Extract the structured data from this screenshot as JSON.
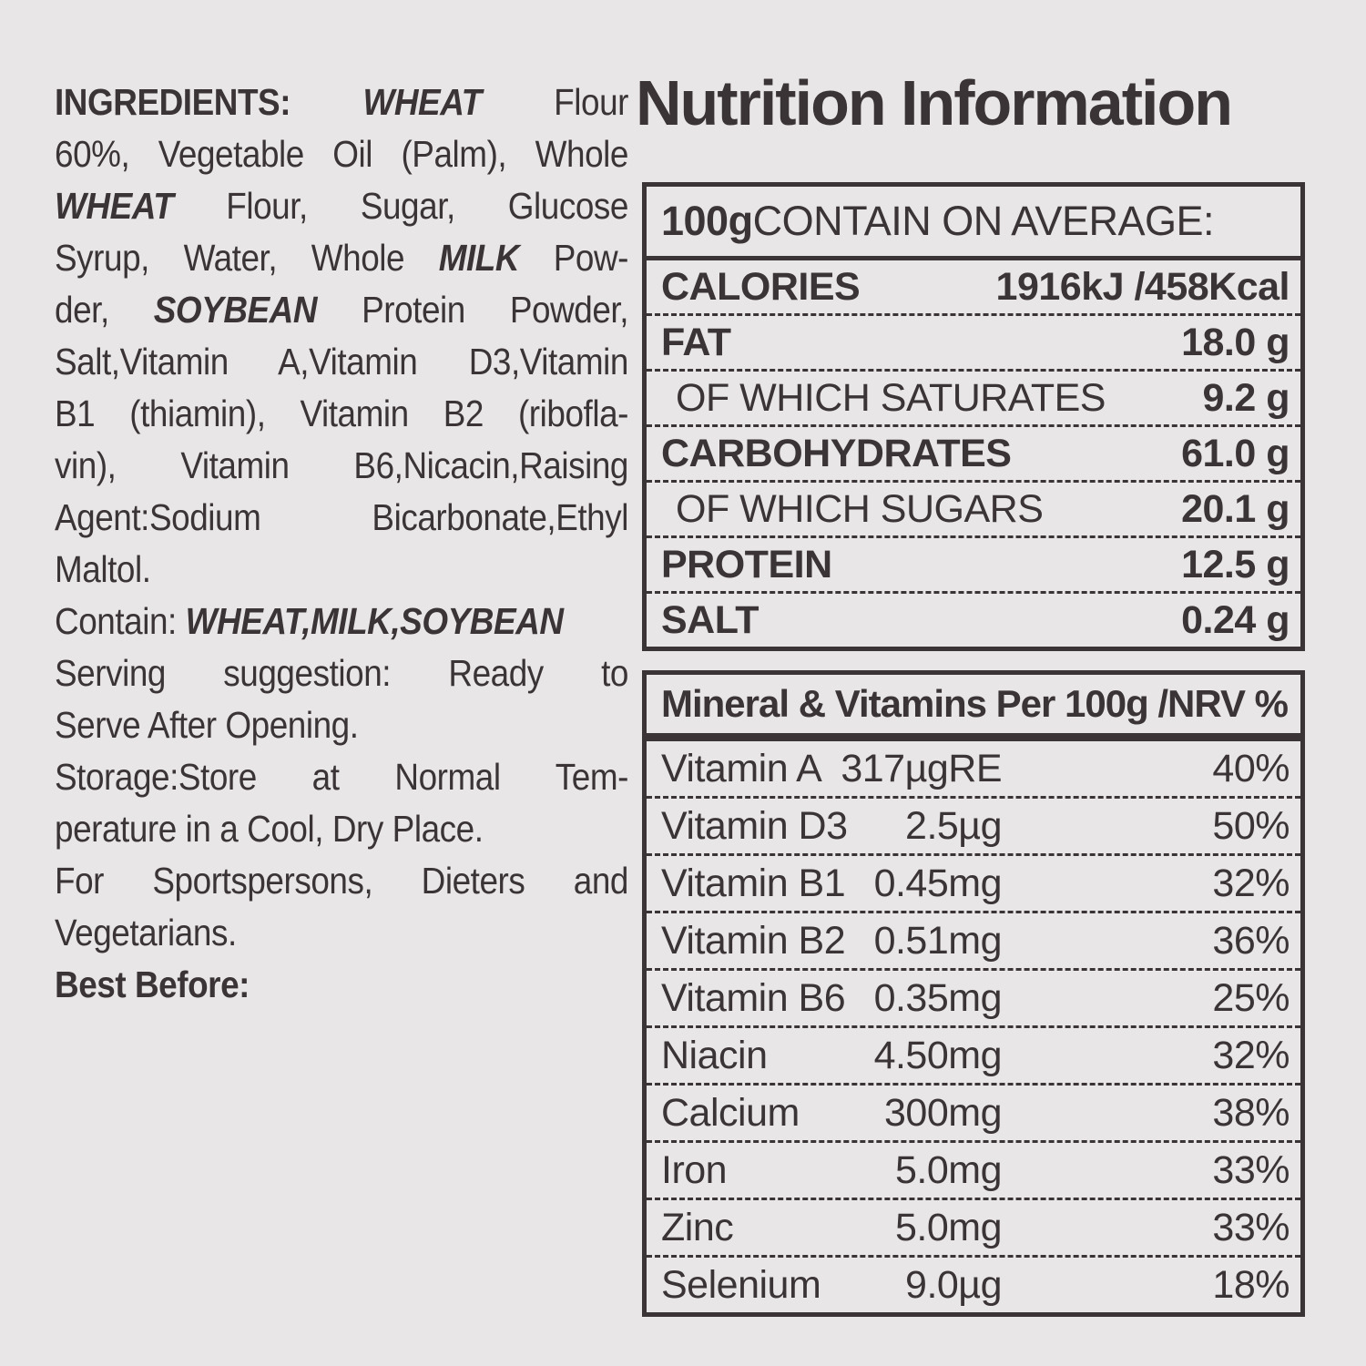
{
  "colors": {
    "background": "#e9e6e7",
    "ink": "#3a3436"
  },
  "ingredients": {
    "lines": [
      {
        "justify": true,
        "segments": [
          {
            "t": "INGREDIENTS: ",
            "b": true
          },
          {
            "t": "WHEAT",
            "b": true,
            "i": true
          },
          {
            "t": " Flour"
          }
        ]
      },
      {
        "justify": true,
        "segments": [
          {
            "t": "60%, Vegetable Oil (Palm), Whole"
          }
        ]
      },
      {
        "justify": true,
        "segments": [
          {
            "t": "WHEAT",
            "b": true,
            "i": true
          },
          {
            "t": " Flour, Sugar, Glucose"
          }
        ]
      },
      {
        "justify": true,
        "segments": [
          {
            "t": "Syrup, Water, Whole "
          },
          {
            "t": "MILK",
            "b": true,
            "i": true
          },
          {
            "t": " Pow-"
          }
        ]
      },
      {
        "justify": true,
        "segments": [
          {
            "t": "der, "
          },
          {
            "t": "SOYBEAN",
            "b": true,
            "i": true
          },
          {
            "t": " Protein Powder,"
          }
        ]
      },
      {
        "justify": true,
        "segments": [
          {
            "t": "Salt,Vitamin A,Vitamin D3,Vitamin"
          }
        ]
      },
      {
        "justify": true,
        "segments": [
          {
            "t": "B1 (thiamin), Vitamin B2 (ribofla-"
          }
        ]
      },
      {
        "justify": true,
        "segments": [
          {
            "t": "vin), Vitamin B6,Nicacin,Raising"
          }
        ]
      },
      {
        "justify": true,
        "segments": [
          {
            "t": "Agent:Sodium Bicarbonate,Ethyl"
          }
        ]
      },
      {
        "justify": false,
        "segments": [
          {
            "t": "Maltol."
          }
        ]
      },
      {
        "justify": false,
        "segments": [
          {
            "t": "Contain: "
          },
          {
            "t": "WHEAT,MILK,SOYBEAN",
            "b": true,
            "i": true
          }
        ]
      },
      {
        "justify": true,
        "segments": [
          {
            "t": "Serving suggestion: Ready to"
          }
        ]
      },
      {
        "justify": false,
        "segments": [
          {
            "t": "Serve After Opening."
          }
        ]
      },
      {
        "justify": true,
        "segments": [
          {
            "t": "Storage:Store at Normal Tem-"
          }
        ]
      },
      {
        "justify": false,
        "segments": [
          {
            "t": "perature in a Cool, Dry Place."
          }
        ]
      },
      {
        "justify": true,
        "segments": [
          {
            "t": "For Sportspersons, Dieters and"
          }
        ]
      },
      {
        "justify": false,
        "segments": [
          {
            "t": "Vegetarians."
          }
        ]
      },
      {
        "justify": false,
        "segments": [
          {
            "t": "Best Before:",
            "b": true
          }
        ]
      }
    ]
  },
  "nutrition": {
    "title": "Nutrition Information",
    "per100g": {
      "header": {
        "bold": "100g",
        "rest": " CONTAIN ON AVERAGE:"
      },
      "rows": [
        {
          "label": "CALORIES",
          "value": "1916kJ /458Kcal",
          "sub": false
        },
        {
          "label": "FAT",
          "value": "18.0 g",
          "sub": false
        },
        {
          "label": "OF WHICH SATURATES",
          "value": "9.2 g",
          "sub": true
        },
        {
          "label": "CARBOHYDRATES",
          "value": "61.0 g",
          "sub": false
        },
        {
          "label": "OF WHICH SUGARS",
          "value": "20.1 g",
          "sub": true
        },
        {
          "label": "PROTEIN",
          "value": "12.5 g",
          "sub": false
        },
        {
          "label": "SALT",
          "value": "0.24 g",
          "sub": false
        }
      ]
    },
    "minerals": {
      "header": {
        "left": "Mineral & Vitamins",
        "mid": "Per 100g",
        "right": "/NRV %"
      },
      "rows": [
        {
          "label": "Vitamin A",
          "value": "317µgRE",
          "nrv": "40%"
        },
        {
          "label": "Vitamin D3",
          "value": "2.5µg",
          "nrv": "50%"
        },
        {
          "label": "Vitamin B1",
          "value": "0.45mg",
          "nrv": "32%"
        },
        {
          "label": "Vitamin B2",
          "value": "0.51mg",
          "nrv": "36%"
        },
        {
          "label": "Vitamin B6",
          "value": "0.35mg",
          "nrv": "25%"
        },
        {
          "label": "Niacin",
          "value": "4.50mg",
          "nrv": "32%"
        },
        {
          "label": "Calcium",
          "value": "300mg",
          "nrv": "38%"
        },
        {
          "label": "Iron",
          "value": "5.0mg",
          "nrv": "33%"
        },
        {
          "label": "Zinc",
          "value": "5.0mg",
          "nrv": "33%"
        },
        {
          "label": "Selenium",
          "value": "9.0µg",
          "nrv": "18%"
        }
      ]
    }
  }
}
